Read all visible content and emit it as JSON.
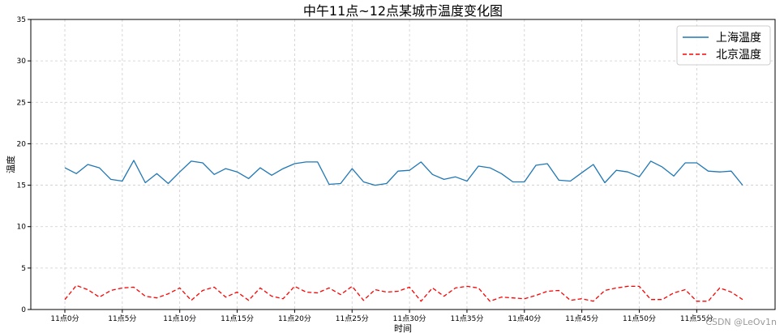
{
  "chart_data": {
    "type": "line",
    "title": "中午11点~12点某城市温度变化图",
    "xlabel": "时间",
    "ylabel": "温度",
    "ylim": [
      0,
      35
    ],
    "yticks": [
      0,
      5,
      10,
      15,
      20,
      25,
      30,
      35
    ],
    "xtick_labels": [
      "11点0分",
      "11点5分",
      "11点10分",
      "11点15分",
      "11点20分",
      "11点25分",
      "11点30分",
      "11点35分",
      "11点40分",
      "11点45分",
      "11点50分",
      "11点55分"
    ],
    "xtick_step": 5,
    "grid": true,
    "legend_position": "upper right",
    "series": [
      {
        "name": "上海温度",
        "color": "#1f77b4",
        "style": "solid",
        "values": [
          17.1,
          16.4,
          17.5,
          17.1,
          15.7,
          15.5,
          18.0,
          15.3,
          16.4,
          15.2,
          16.6,
          17.9,
          17.7,
          16.3,
          17.0,
          16.6,
          15.8,
          17.1,
          16.2,
          17.0,
          17.6,
          17.8,
          17.8,
          15.1,
          15.2,
          17.0,
          15.4,
          15.0,
          15.2,
          16.7,
          16.8,
          17.8,
          16.3,
          15.7,
          16.0,
          15.5,
          17.3,
          17.1,
          16.4,
          15.4,
          15.4,
          17.4,
          17.6,
          15.6,
          15.5,
          16.5,
          17.5,
          15.3,
          16.8,
          16.6,
          16.0,
          17.9,
          17.2,
          16.1,
          17.7,
          17.7,
          16.7,
          16.6,
          16.7,
          15.0
        ]
      },
      {
        "name": "北京温度",
        "color": "#ff0000",
        "style": "dashed",
        "values": [
          1.2,
          2.9,
          2.4,
          1.5,
          2.3,
          2.6,
          2.7,
          1.6,
          1.4,
          1.9,
          2.6,
          1.1,
          2.3,
          2.7,
          1.5,
          2.1,
          1.1,
          2.6,
          1.6,
          1.3,
          2.8,
          2.1,
          2.0,
          2.6,
          1.8,
          2.8,
          1.1,
          2.4,
          2.1,
          2.2,
          2.7,
          1.0,
          2.6,
          1.6,
          2.6,
          2.8,
          2.6,
          1.0,
          1.5,
          1.4,
          1.3,
          1.7,
          2.2,
          2.3,
          1.1,
          1.3,
          1.0,
          2.3,
          2.6,
          2.8,
          2.8,
          1.2,
          1.2,
          2.0,
          2.4,
          1.0,
          1.0,
          2.6,
          2.1,
          1.2
        ]
      }
    ]
  },
  "watermark": "CSDN @LeOv1n"
}
